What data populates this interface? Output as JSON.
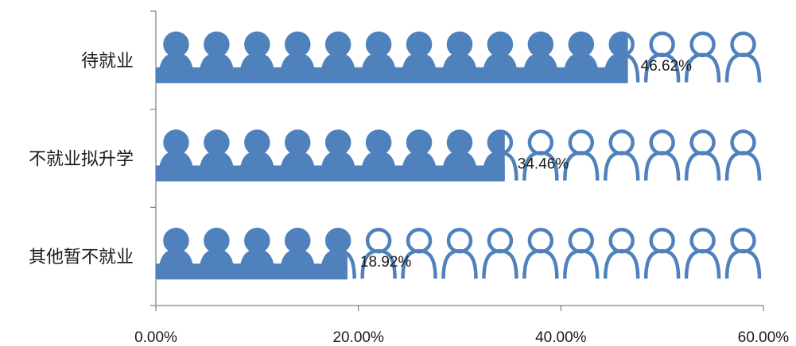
{
  "chart_data": {
    "type": "bar",
    "orientation": "horizontal",
    "style": "pictograph",
    "icon": "person-icon",
    "categories": [
      "待就业",
      "不就业拟升学",
      "其他暂不就业"
    ],
    "values": [
      46.62,
      34.46,
      18.92
    ],
    "data_labels": [
      "46.62%",
      "34.46%",
      "18.92%"
    ],
    "xlim": [
      0,
      60
    ],
    "xticks": [
      0,
      20,
      40,
      60
    ],
    "xtick_labels": [
      "0.00%",
      "20.00%",
      "40.00%",
      "60.00%"
    ],
    "title": "",
    "xlabel": "",
    "ylabel": "",
    "grid": false,
    "legend": "none",
    "colors": {
      "fill": "#4F81BD",
      "axis": "#7f7f7f",
      "text": "#1a1a1a"
    }
  }
}
